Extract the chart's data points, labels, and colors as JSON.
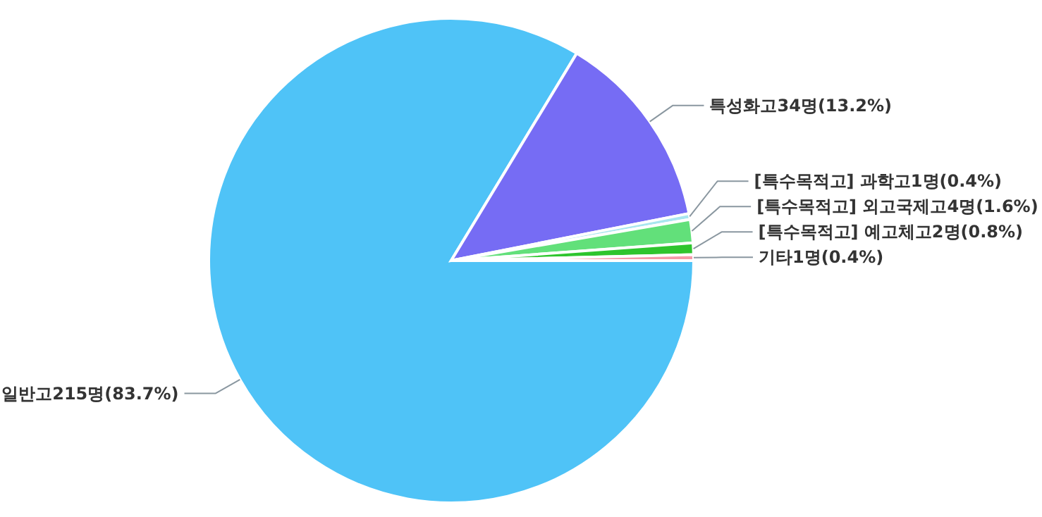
{
  "chart_data": {
    "type": "pie",
    "categories": [
      "일반고215명(83.7%)",
      "특성화고34명(13.2%)",
      "[특수목적고] 과학고1명(0.4%)",
      "[특수목적고] 외고국제고4명(1.6%)",
      "[특수목적고] 예고체고2명(0.8%)",
      "기타1명(0.4%)"
    ],
    "values": [
      215,
      34,
      1,
      4,
      2,
      1
    ],
    "colors": [
      "#4fc3f7",
      "#766cf4",
      "#a8e6ef",
      "#62e07a",
      "#2ec52e",
      "#f49aa8"
    ]
  }
}
